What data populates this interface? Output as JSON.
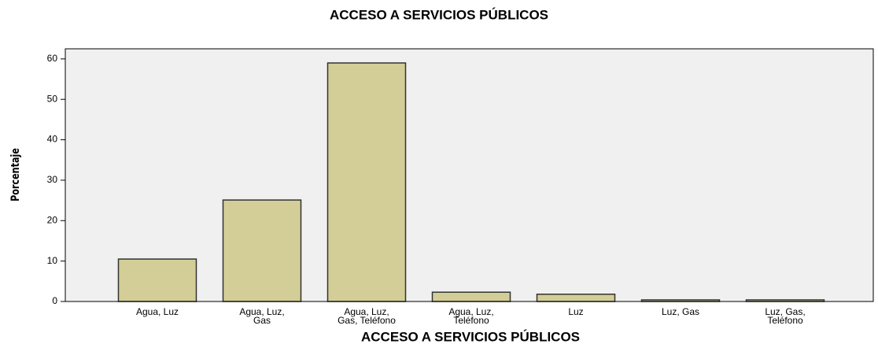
{
  "chart_data": {
    "type": "bar",
    "title": "ACCESO A SERVICIOS PÚBLICOS",
    "x_label": "ACCESO A SERVICIOS PÚBLICOS",
    "y_label": "Porcentaje",
    "categories": [
      "Agua, Luz",
      "Agua, Luz, Gas",
      "Agua, Luz, Gas, Teléfono",
      "Agua, Luz, Teléfono",
      "Luz",
      "Luz, Gas",
      "Luz, Gas, Teléfono"
    ],
    "values": [
      10.5,
      25.1,
      59.0,
      2.3,
      1.8,
      0.4,
      0.4
    ],
    "color": "#d3ce97",
    "ylim": [
      0,
      62.5
    ],
    "yticks": [
      0,
      10,
      20,
      30,
      40,
      50,
      60
    ],
    "grid": false
  }
}
